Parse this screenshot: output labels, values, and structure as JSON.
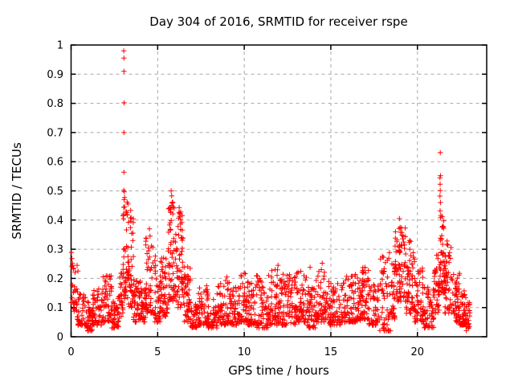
{
  "chart_data": {
    "type": "scatter",
    "title": "Day 304 of 2016, SRMTID for receiver rspe",
    "xlabel": "GPS time / hours",
    "ylabel": "SRMTID / TECUs",
    "xlim": [
      0,
      24
    ],
    "ylim": [
      0,
      1
    ],
    "xticks": [
      0,
      5,
      10,
      15,
      20
    ],
    "ytick_labels": [
      "0",
      "0.1",
      "0.2",
      "0.3",
      "0.4",
      "0.5",
      "0.6",
      "0.7",
      "0.8",
      "0.9",
      "1"
    ],
    "grid": true,
    "legend": "none",
    "marker": "plus",
    "marker_color": "#ff0000",
    "x_data_start": 0.0,
    "x_data_end": 23.0,
    "outlier_points": [
      [
        0.02,
        0.289
      ],
      [
        0.05,
        0.268
      ],
      [
        0.09,
        0.251
      ],
      [
        0.13,
        0.232
      ],
      [
        0.35,
        0.245
      ],
      [
        0.4,
        0.225
      ],
      [
        3.04,
        0.98
      ],
      [
        3.05,
        0.955
      ],
      [
        3.05,
        0.91
      ],
      [
        3.06,
        0.802
      ],
      [
        3.05,
        0.7
      ],
      [
        3.05,
        0.564
      ],
      [
        3.04,
        0.502
      ],
      [
        3.07,
        0.497
      ],
      [
        3.06,
        0.47
      ],
      [
        3.09,
        0.445
      ],
      [
        3.03,
        0.421
      ],
      [
        3.44,
        0.433
      ],
      [
        3.47,
        0.408
      ],
      [
        4.52,
        0.37
      ],
      [
        4.56,
        0.345
      ],
      [
        5.78,
        0.5
      ],
      [
        5.81,
        0.483
      ],
      [
        5.84,
        0.458
      ],
      [
        5.76,
        0.437
      ],
      [
        5.95,
        0.441
      ],
      [
        6.24,
        0.443
      ],
      [
        6.28,
        0.421
      ],
      [
        9.0,
        0.205
      ],
      [
        10.0,
        0.218
      ],
      [
        11.95,
        0.245
      ],
      [
        13.8,
        0.238
      ],
      [
        14.5,
        0.252
      ],
      [
        16.85,
        0.237
      ],
      [
        16.97,
        0.237
      ],
      [
        18.96,
        0.405
      ],
      [
        19.0,
        0.375
      ],
      [
        19.03,
        0.358
      ],
      [
        21.32,
        0.631
      ],
      [
        21.3,
        0.545
      ],
      [
        21.33,
        0.552
      ],
      [
        21.31,
        0.523
      ],
      [
        21.32,
        0.501
      ],
      [
        21.3,
        0.482
      ],
      [
        21.33,
        0.46
      ],
      [
        21.31,
        0.432
      ]
    ],
    "density_segments": [
      [
        0.0,
        0.35,
        28,
        0.07,
        0.27,
        1.5
      ],
      [
        0.35,
        0.9,
        48,
        0.04,
        0.16,
        1.8
      ],
      [
        0.9,
        1.25,
        40,
        0.02,
        0.12,
        1.8
      ],
      [
        1.25,
        1.8,
        52,
        0.04,
        0.17,
        1.8
      ],
      [
        1.8,
        2.35,
        56,
        0.05,
        0.21,
        1.8
      ],
      [
        2.35,
        2.8,
        44,
        0.03,
        0.14,
        1.8
      ],
      [
        2.8,
        3.0,
        22,
        0.07,
        0.24,
        1.5
      ],
      [
        3.0,
        3.3,
        46,
        0.13,
        0.48,
        1.4
      ],
      [
        3.3,
        3.6,
        40,
        0.1,
        0.42,
        1.5
      ],
      [
        3.6,
        4.0,
        46,
        0.05,
        0.2,
        1.8
      ],
      [
        4.0,
        4.3,
        34,
        0.05,
        0.17,
        1.8
      ],
      [
        4.3,
        4.8,
        55,
        0.08,
        0.34,
        1.6
      ],
      [
        4.8,
        5.2,
        45,
        0.05,
        0.3,
        1.8
      ],
      [
        5.2,
        5.6,
        45,
        0.07,
        0.27,
        1.7
      ],
      [
        5.6,
        6.0,
        55,
        0.12,
        0.47,
        1.5
      ],
      [
        6.0,
        6.5,
        65,
        0.1,
        0.43,
        1.5
      ],
      [
        6.5,
        6.9,
        46,
        0.05,
        0.24,
        1.7
      ],
      [
        6.9,
        7.35,
        42,
        0.03,
        0.12,
        1.8
      ],
      [
        7.35,
        7.9,
        50,
        0.04,
        0.18,
        1.8
      ],
      [
        7.9,
        8.45,
        50,
        0.03,
        0.15,
        1.8
      ],
      [
        8.45,
        9.15,
        64,
        0.04,
        0.2,
        1.8
      ],
      [
        9.15,
        9.7,
        50,
        0.04,
        0.17,
        1.8
      ],
      [
        9.7,
        10.2,
        48,
        0.05,
        0.22,
        1.8
      ],
      [
        10.2,
        10.7,
        48,
        0.04,
        0.19,
        1.8
      ],
      [
        10.7,
        11.4,
        65,
        0.03,
        0.21,
        1.8
      ],
      [
        11.4,
        12.1,
        65,
        0.04,
        0.23,
        1.8
      ],
      [
        12.1,
        13.0,
        85,
        0.04,
        0.22,
        1.7
      ],
      [
        13.0,
        13.6,
        58,
        0.05,
        0.23,
        1.7
      ],
      [
        13.6,
        14.1,
        48,
        0.03,
        0.18,
        1.8
      ],
      [
        14.1,
        14.9,
        72,
        0.05,
        0.24,
        1.7
      ],
      [
        14.9,
        15.6,
        60,
        0.04,
        0.19,
        1.8
      ],
      [
        15.6,
        16.3,
        60,
        0.05,
        0.21,
        1.8
      ],
      [
        16.3,
        16.75,
        44,
        0.05,
        0.22,
        1.7
      ],
      [
        16.75,
        17.2,
        48,
        0.06,
        0.24,
        1.6
      ],
      [
        17.2,
        17.8,
        50,
        0.04,
        0.18,
        1.8
      ],
      [
        17.8,
        18.45,
        26,
        0.02,
        0.1,
        1.8
      ],
      [
        17.85,
        18.45,
        30,
        0.13,
        0.29,
        1.5
      ],
      [
        18.45,
        18.7,
        30,
        0.06,
        0.25,
        1.5
      ],
      [
        18.7,
        19.35,
        75,
        0.12,
        0.38,
        1.4
      ],
      [
        19.35,
        19.85,
        60,
        0.08,
        0.33,
        1.5
      ],
      [
        19.85,
        20.35,
        55,
        0.05,
        0.24,
        1.7
      ],
      [
        20.35,
        20.95,
        55,
        0.03,
        0.17,
        1.8
      ],
      [
        20.95,
        21.28,
        42,
        0.08,
        0.28,
        1.5
      ],
      [
        21.28,
        21.55,
        46,
        0.15,
        0.42,
        1.3
      ],
      [
        21.55,
        21.95,
        50,
        0.08,
        0.33,
        1.5
      ],
      [
        21.95,
        22.45,
        55,
        0.05,
        0.22,
        1.7
      ],
      [
        22.45,
        22.8,
        45,
        0.04,
        0.16,
        1.8
      ],
      [
        22.8,
        23.05,
        24,
        0.02,
        0.12,
        1.7
      ]
    ]
  }
}
